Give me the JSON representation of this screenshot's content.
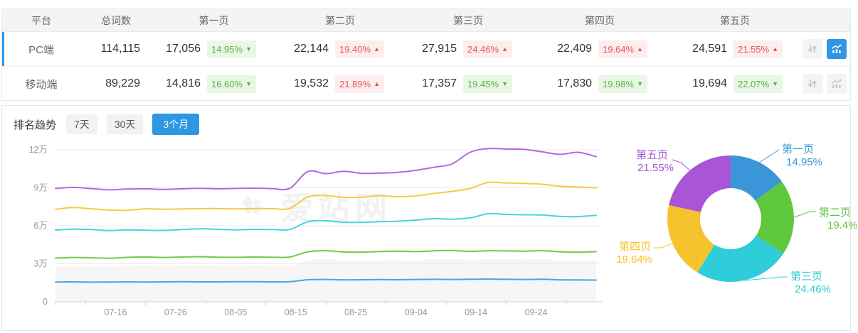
{
  "accent": "#2e96e3",
  "table": {
    "headers": [
      "平台",
      "总词数",
      "第一页",
      "第二页",
      "第三页",
      "第四页",
      "第五页"
    ],
    "rows": [
      {
        "platform": "PC端",
        "total": "114,115",
        "active": true,
        "pages": [
          {
            "count": "17,056",
            "pct": "14.95%",
            "trend": "down"
          },
          {
            "count": "22,144",
            "pct": "19.40%",
            "trend": "up"
          },
          {
            "count": "27,915",
            "pct": "24.46%",
            "trend": "up"
          },
          {
            "count": "22,409",
            "pct": "19.64%",
            "trend": "up"
          },
          {
            "count": "24,591",
            "pct": "21.55%",
            "trend": "up"
          }
        ],
        "buttons": {
          "sort_active": false,
          "chart_active": true
        }
      },
      {
        "platform": "移动端",
        "total": "89,229",
        "active": false,
        "pages": [
          {
            "count": "14,816",
            "pct": "16.60%",
            "trend": "down"
          },
          {
            "count": "19,532",
            "pct": "21.89%",
            "trend": "up"
          },
          {
            "count": "17,357",
            "pct": "19.45%",
            "trend": "down"
          },
          {
            "count": "17,830",
            "pct": "19.98%",
            "trend": "down"
          },
          {
            "count": "19,694",
            "pct": "22.07%",
            "trend": "down"
          }
        ],
        "buttons": {
          "sort_active": false,
          "chart_active": false
        }
      }
    ],
    "badge_colors": {
      "down_text": "#52b43f",
      "down_bg": "#eaf7e6",
      "up_text": "#e95454",
      "up_bg": "#fdeeee"
    }
  },
  "trend_section": {
    "title": "排名趋势",
    "tabs": [
      {
        "label": "7天",
        "active": false
      },
      {
        "label": "30天",
        "active": false
      },
      {
        "label": "3个月",
        "active": true
      }
    ]
  },
  "watermark_text": "爱站网",
  "chart_data": [
    {
      "type": "line",
      "title": "排名趋势 3个月",
      "unit": "万",
      "x_start": "07-06",
      "x_end": "10-04",
      "days_total": 90,
      "point_interval_days": 3,
      "x_ticks": [
        {
          "label": "07-16",
          "day": 10
        },
        {
          "label": "07-26",
          "day": 20
        },
        {
          "label": "08-05",
          "day": 30
        },
        {
          "label": "08-15",
          "day": 40
        },
        {
          "label": "08-25",
          "day": 50
        },
        {
          "label": "09-04",
          "day": 60
        },
        {
          "label": "09-14",
          "day": 70
        },
        {
          "label": "09-24",
          "day": 80
        }
      ],
      "y_ticks": [
        {
          "label": "0",
          "value": 0
        },
        {
          "label": "3万",
          "value": 3
        },
        {
          "label": "6万",
          "value": 6
        },
        {
          "label": "9万",
          "value": 9
        },
        {
          "label": "12万",
          "value": 12
        }
      ],
      "note": "values are cumulative keyword counts by page (unit 万 = 10,000), stacked lines",
      "series": [
        {
          "name": "第一页",
          "color": "#4aa4e8",
          "values": [
            1.56,
            1.57,
            1.55,
            1.56,
            1.57,
            1.56,
            1.57,
            1.58,
            1.57,
            1.57,
            1.58,
            1.58,
            1.57,
            1.58,
            1.74,
            1.76,
            1.73,
            1.74,
            1.75,
            1.74,
            1.76,
            1.77,
            1.76,
            1.78,
            1.79,
            1.77,
            1.76,
            1.78,
            1.73,
            1.72,
            1.71
          ]
        },
        {
          "name": "第二页",
          "color": "#6fcb4f",
          "values": [
            3.45,
            3.5,
            3.47,
            3.44,
            3.51,
            3.53,
            3.5,
            3.53,
            3.56,
            3.52,
            3.51,
            3.53,
            3.52,
            3.53,
            3.95,
            4.03,
            3.93,
            3.92,
            3.97,
            4.0,
            3.96,
            4.02,
            4.05,
            3.98,
            4.03,
            4.02,
            4.0,
            4.03,
            3.95,
            3.91,
            3.96
          ]
        },
        {
          "name": "第三页",
          "color": "#46d4e0",
          "values": [
            5.66,
            5.73,
            5.7,
            5.62,
            5.68,
            5.65,
            5.63,
            5.7,
            5.76,
            5.72,
            5.68,
            5.72,
            5.7,
            5.71,
            6.32,
            6.4,
            6.28,
            6.27,
            6.33,
            6.36,
            6.45,
            6.56,
            6.52,
            6.62,
            6.95,
            6.9,
            6.87,
            6.85,
            6.74,
            6.72,
            6.83
          ]
        },
        {
          "name": "第四页",
          "color": "#f8c93f",
          "values": [
            7.3,
            7.44,
            7.34,
            7.24,
            7.23,
            7.34,
            7.31,
            7.33,
            7.35,
            7.36,
            7.33,
            7.36,
            7.35,
            7.37,
            8.28,
            8.38,
            8.24,
            8.26,
            8.37,
            8.3,
            8.36,
            8.55,
            8.72,
            8.95,
            9.42,
            9.38,
            9.34,
            9.28,
            9.12,
            9.06,
            9.0
          ]
        },
        {
          "name": "第五页",
          "color": "#b368e0",
          "values": [
            8.95,
            9.03,
            8.94,
            8.84,
            8.9,
            8.92,
            8.87,
            8.92,
            8.96,
            8.92,
            8.95,
            8.97,
            8.94,
            8.96,
            10.28,
            10.12,
            10.3,
            10.14,
            10.16,
            10.22,
            10.38,
            10.62,
            10.88,
            11.8,
            12.1,
            12.06,
            12.03,
            11.84,
            11.64,
            11.8,
            11.46
          ]
        }
      ]
    },
    {
      "type": "donut",
      "slices": [
        {
          "label": "第一页",
          "value": 14.95,
          "display": "14.95%",
          "color": "#3a96d9"
        },
        {
          "label": "第二页",
          "value": 19.4,
          "display": "19.4%",
          "color": "#5fc83c"
        },
        {
          "label": "第三页",
          "value": 24.46,
          "display": "24.46%",
          "color": "#2fccd9"
        },
        {
          "label": "第四页",
          "value": 19.64,
          "display": "19.64%",
          "color": "#f6c22e"
        },
        {
          "label": "第五页",
          "value": 21.55,
          "display": "21.55%",
          "color": "#a855d8"
        }
      ]
    }
  ]
}
